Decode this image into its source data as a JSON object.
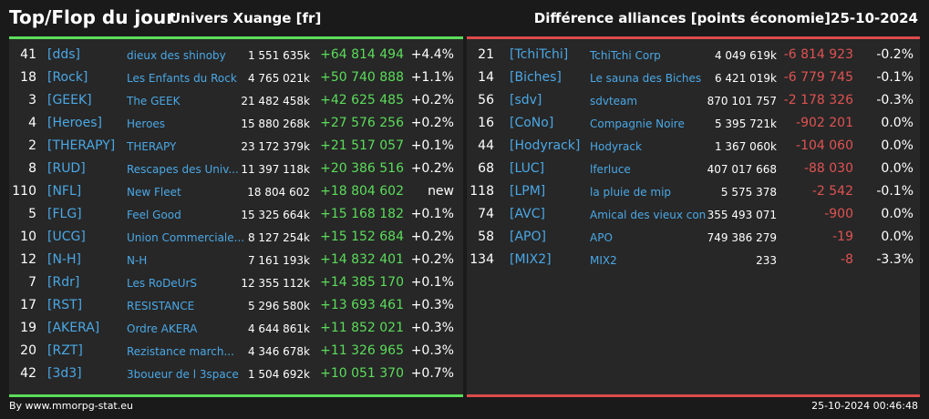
{
  "header": {
    "title": "Top/Flop du jour",
    "universe": "Univers Xuange [fr]",
    "subtitle": "Différence alliances [points économie]",
    "date": "25-10-2024"
  },
  "colors": {
    "positive": "#5bdd5b",
    "negative": "#e05252",
    "link": "#4aa8e6"
  },
  "top": [
    {
      "rank": "41",
      "tag": "[dds]",
      "name": "dieux des shinoby",
      "points": "1 551 635k",
      "diff": "+64 814 494",
      "pct": "+4.4%"
    },
    {
      "rank": "18",
      "tag": "[Rock]",
      "name": "Les Enfants du Rock",
      "points": "4 765 021k",
      "diff": "+50 740 888",
      "pct": "+1.1%"
    },
    {
      "rank": "3",
      "tag": "[GEEK]",
      "name": "The GEEK",
      "points": "21 482 458k",
      "diff": "+42 625 485",
      "pct": "+0.2%"
    },
    {
      "rank": "4",
      "tag": "[Heroes]",
      "name": "Heroes",
      "points": "15 880 268k",
      "diff": "+27 576 256",
      "pct": "+0.2%"
    },
    {
      "rank": "2",
      "tag": "[THERAPY]",
      "name": "THERAPY",
      "points": "23 172 379k",
      "diff": "+21 517 057",
      "pct": "+0.1%"
    },
    {
      "rank": "8",
      "tag": "[RUD]",
      "name": "Rescapes des Univ...",
      "points": "11 397 118k",
      "diff": "+20 386 516",
      "pct": "+0.2%"
    },
    {
      "rank": "110",
      "tag": "[NFL]",
      "name": "New Fleet",
      "points": "18 804 602",
      "diff": "+18 804 602",
      "pct": "new"
    },
    {
      "rank": "5",
      "tag": "[FLG]",
      "name": "Feel Good",
      "points": "15 325 664k",
      "diff": "+15 168 182",
      "pct": "+0.1%"
    },
    {
      "rank": "10",
      "tag": "[UCG]",
      "name": "Union Commerciale...",
      "points": "8 127 254k",
      "diff": "+15 152 684",
      "pct": "+0.2%"
    },
    {
      "rank": "12",
      "tag": "[N-H]",
      "name": "N-H",
      "points": "7 161 193k",
      "diff": "+14 832 401",
      "pct": "+0.2%"
    },
    {
      "rank": "7",
      "tag": "[Rdr]",
      "name": "Les RoDeUrS",
      "points": "12 355 112k",
      "diff": "+14 385 170",
      "pct": "+0.1%"
    },
    {
      "rank": "17",
      "tag": "[RST]",
      "name": "RESISTANCE",
      "points": "5 296 580k",
      "diff": "+13 693 461",
      "pct": "+0.3%"
    },
    {
      "rank": "19",
      "tag": "[AKERA]",
      "name": "Ordre AKERA",
      "points": "4 644 861k",
      "diff": "+11 852 021",
      "pct": "+0.3%"
    },
    {
      "rank": "20",
      "tag": "[RZT]",
      "name": "Rezistance march...",
      "points": "4 346 678k",
      "diff": "+11 326 965",
      "pct": "+0.3%"
    },
    {
      "rank": "42",
      "tag": "[3d3]",
      "name": "3boueur de l 3space",
      "points": "1 504 692k",
      "diff": "+10 051 370",
      "pct": "+0.7%"
    }
  ],
  "flop": [
    {
      "rank": "21",
      "tag": "[TchiTchi]",
      "name": "TchiTchi Corp",
      "points": "4 049 619k",
      "diff": "-6 814 923",
      "pct": "-0.2%"
    },
    {
      "rank": "14",
      "tag": "[Biches]",
      "name": "Le sauna des Biches",
      "points": "6 421 019k",
      "diff": "-6 779 745",
      "pct": "-0.1%"
    },
    {
      "rank": "56",
      "tag": "[sdv]",
      "name": "sdvteam",
      "points": "870 101 757",
      "diff": "-2 178 326",
      "pct": "-0.3%"
    },
    {
      "rank": "16",
      "tag": "[CoNo]",
      "name": "Compagnie Noire",
      "points": "5 395 721k",
      "diff": "-902 201",
      "pct": "0.0%"
    },
    {
      "rank": "44",
      "tag": "[Hodyrack]",
      "name": "Hodyrack",
      "points": "1 367 060k",
      "diff": "-104 060",
      "pct": "0.0%"
    },
    {
      "rank": "68",
      "tag": "[LUC]",
      "name": "lferluce",
      "points": "407 017 668",
      "diff": "-88 030",
      "pct": "0.0%"
    },
    {
      "rank": "118",
      "tag": "[LPM]",
      "name": "la pluie de mip",
      "points": "5 575 378",
      "diff": "-2 542",
      "pct": "-0.1%"
    },
    {
      "rank": "74",
      "tag": "[AVC]",
      "name": "Amical des vieux con",
      "points": "355 493 071",
      "diff": "-900",
      "pct": "0.0%"
    },
    {
      "rank": "58",
      "tag": "[APO]",
      "name": "APO",
      "points": "749 386 279",
      "diff": "-19",
      "pct": "0.0%"
    },
    {
      "rank": "134",
      "tag": "[MIX2]",
      "name": "MIX2",
      "points": "233",
      "diff": "-8",
      "pct": "-3.3%"
    }
  ],
  "footer": {
    "source": "By www.mmorpg-stat.eu",
    "timestamp": "25-10-2024 00:46:48"
  }
}
